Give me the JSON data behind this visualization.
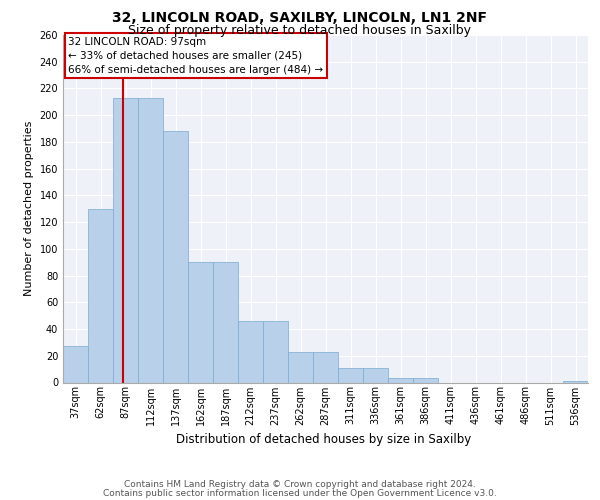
{
  "title1": "32, LINCOLN ROAD, SAXILBY, LINCOLN, LN1 2NF",
  "title2": "Size of property relative to detached houses in Saxilby",
  "xlabel": "Distribution of detached houses by size in Saxilby",
  "ylabel": "Number of detached properties",
  "footer1": "Contains HM Land Registry data © Crown copyright and database right 2024.",
  "footer2": "Contains public sector information licensed under the Open Government Licence v3.0.",
  "annotation_line1": "32 LINCOLN ROAD: 97sqm",
  "annotation_line2": "← 33% of detached houses are smaller (245)",
  "annotation_line3": "66% of semi-detached houses are larger (484) →",
  "bar_values": [
    27,
    130,
    213,
    213,
    188,
    90,
    90,
    46,
    46,
    23,
    23,
    11,
    11,
    3,
    3,
    0,
    0,
    0,
    0,
    0,
    1
  ],
  "bin_labels": [
    "37sqm",
    "62sqm",
    "87sqm",
    "112sqm",
    "137sqm",
    "162sqm",
    "187sqm",
    "212sqm",
    "237sqm",
    "262sqm",
    "287sqm",
    "311sqm",
    "336sqm",
    "361sqm",
    "386sqm",
    "411sqm",
    "436sqm",
    "461sqm",
    "486sqm",
    "511sqm",
    "536sqm"
  ],
  "bar_color": "#b8d0ea",
  "bar_edge_color": "#7aaad0",
  "vline_color": "#cc0000",
  "ylim": [
    0,
    260
  ],
  "yticks": [
    0,
    20,
    40,
    60,
    80,
    100,
    120,
    140,
    160,
    180,
    200,
    220,
    240,
    260
  ],
  "bg_color": "#eef2f8",
  "grid_color": "#ffffff",
  "annotation_box_color": "#cc0000",
  "title1_fontsize": 10,
  "title2_fontsize": 9,
  "ylabel_fontsize": 8,
  "xlabel_fontsize": 8.5,
  "tick_fontsize": 7,
  "annotation_fontsize": 7.5,
  "footer_fontsize": 6.5
}
